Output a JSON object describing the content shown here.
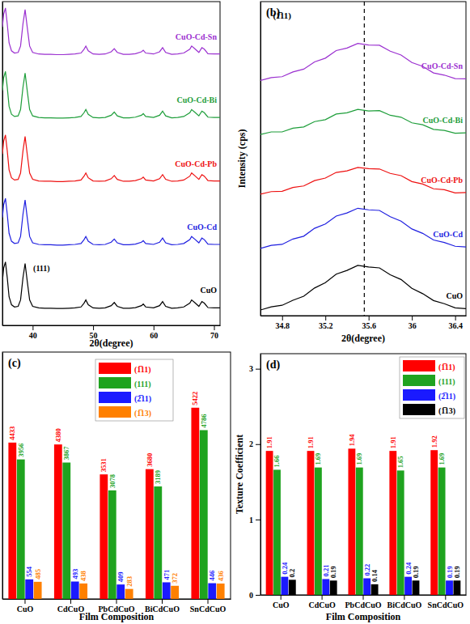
{
  "chart_data": [
    {
      "type": "line",
      "x_label": "2θ(degree)",
      "x": [
        35.0,
        35.2,
        35.5,
        35.8,
        36.1,
        36.5,
        37.0,
        37.6,
        38.0,
        38.4,
        38.75,
        39.1,
        39.5,
        40.0,
        41,
        42,
        43,
        44,
        45,
        46,
        47,
        48,
        48.5,
        48.8,
        49.2,
        50,
        51,
        52,
        53,
        53.5,
        54,
        55,
        56,
        57,
        58,
        58.3,
        58.7,
        60,
        61,
        61.5,
        62,
        63,
        64,
        65,
        66,
        66.3,
        66.8,
        67.5,
        68.0,
        68.4,
        69,
        70,
        71
      ],
      "series": [
        {
          "name": "CuO",
          "color": "#000000",
          "values": [
            1.4,
            1.8,
            2.0,
            1.5,
            0.9,
            0.65,
            0.58,
            0.6,
            0.8,
            1.5,
            1.95,
            1.4,
            0.8,
            0.6,
            0.55,
            0.54,
            0.54,
            0.53,
            0.53,
            0.54,
            0.55,
            0.58,
            0.7,
            0.8,
            0.65,
            0.55,
            0.54,
            0.55,
            0.62,
            0.72,
            0.6,
            0.54,
            0.54,
            0.56,
            0.62,
            0.67,
            0.58,
            0.55,
            0.62,
            0.75,
            0.6,
            0.54,
            0.55,
            0.58,
            0.7,
            0.8,
            0.72,
            0.6,
            0.75,
            0.7,
            0.56,
            0.55,
            0.55
          ]
        },
        {
          "name": "CuO-Cd",
          "color": "#1f1fe0",
          "values": [
            3.4,
            3.8,
            4.0,
            3.5,
            2.9,
            2.65,
            2.58,
            2.6,
            2.8,
            3.5,
            3.95,
            3.4,
            2.8,
            2.6,
            2.55,
            2.54,
            2.54,
            2.53,
            2.53,
            2.54,
            2.55,
            2.58,
            2.7,
            2.8,
            2.65,
            2.55,
            2.54,
            2.55,
            2.62,
            2.72,
            2.6,
            2.54,
            2.54,
            2.56,
            2.62,
            2.67,
            2.58,
            2.55,
            2.62,
            2.75,
            2.6,
            2.54,
            2.55,
            2.58,
            2.7,
            2.8,
            2.72,
            2.6,
            2.75,
            2.7,
            2.56,
            2.55,
            2.55
          ]
        },
        {
          "name": "CuO-Cd-Pb",
          "color": "#ee1111",
          "values": [
            5.4,
            5.8,
            6.0,
            5.5,
            4.9,
            4.65,
            4.58,
            4.6,
            4.8,
            5.5,
            5.95,
            5.4,
            4.8,
            4.6,
            4.55,
            4.54,
            4.54,
            4.53,
            4.53,
            4.54,
            4.55,
            4.58,
            4.7,
            4.8,
            4.65,
            4.55,
            4.54,
            4.55,
            4.62,
            4.72,
            4.6,
            4.54,
            4.54,
            4.56,
            4.62,
            4.67,
            4.58,
            4.55,
            4.62,
            4.75,
            4.6,
            4.54,
            4.55,
            4.58,
            4.7,
            4.8,
            4.72,
            4.6,
            4.75,
            4.7,
            4.56,
            4.55,
            4.55
          ]
        },
        {
          "name": "CuO-Cd-Bi",
          "color": "#1e9e3a",
          "values": [
            7.4,
            7.8,
            8.0,
            7.5,
            6.9,
            6.65,
            6.58,
            6.6,
            6.8,
            7.5,
            7.95,
            7.4,
            6.8,
            6.6,
            6.55,
            6.54,
            6.54,
            6.53,
            6.53,
            6.54,
            6.55,
            6.58,
            6.7,
            6.8,
            6.65,
            6.55,
            6.54,
            6.55,
            6.62,
            6.72,
            6.6,
            6.54,
            6.54,
            6.56,
            6.62,
            6.67,
            6.58,
            6.55,
            6.62,
            6.75,
            6.6,
            6.54,
            6.55,
            6.58,
            6.7,
            6.8,
            6.72,
            6.6,
            6.75,
            6.7,
            6.56,
            6.55,
            6.55
          ]
        },
        {
          "name": "CuO-Cd-Sn",
          "color": "#9b30d0",
          "values": [
            9.4,
            9.8,
            10.0,
            9.5,
            8.9,
            8.65,
            8.58,
            8.6,
            8.8,
            9.5,
            9.95,
            9.4,
            8.8,
            8.6,
            8.55,
            8.54,
            8.54,
            8.53,
            8.53,
            8.54,
            8.55,
            8.58,
            8.7,
            8.8,
            8.65,
            8.55,
            8.54,
            8.55,
            8.62,
            8.72,
            8.6,
            8.54,
            8.54,
            8.56,
            8.62,
            8.67,
            8.58,
            8.55,
            8.62,
            8.75,
            8.6,
            8.54,
            8.55,
            8.58,
            8.7,
            8.8,
            8.72,
            8.6,
            8.75,
            8.7,
            8.56,
            8.55,
            8.55
          ]
        }
      ],
      "annotations": [
        {
          "text": "(111)",
          "x": 40.1,
          "y": 1.7
        }
      ],
      "xlim": [
        35,
        71
      ],
      "xticks": [
        40,
        50,
        60,
        70
      ],
      "ylim": [
        0,
        10.2
      ],
      "tick_labels": "x"
    },
    {
      "type": "line",
      "title": "(b)",
      "x_label": "2θ(degree)",
      "y_label": "Intensity (cps)",
      "x": [
        34.6,
        34.7,
        34.8,
        34.9,
        35.0,
        35.1,
        35.2,
        35.3,
        35.4,
        35.5,
        35.6,
        35.7,
        35.8,
        35.9,
        36.0,
        36.1,
        36.2,
        36.3,
        36.4,
        36.5
      ],
      "series": [
        {
          "name": "CuO",
          "color": "#000000",
          "values": [
            0.18,
            0.28,
            0.33,
            0.49,
            0.62,
            0.88,
            1.05,
            1.32,
            1.44,
            1.6,
            1.55,
            1.52,
            1.3,
            1.15,
            0.87,
            0.7,
            0.48,
            0.38,
            0.25,
            0.22
          ]
        },
        {
          "name": "CuO-Cd",
          "color": "#1f1fe0",
          "values": [
            2.14,
            2.24,
            2.27,
            2.44,
            2.53,
            2.78,
            2.92,
            3.17,
            3.27,
            3.42,
            3.37,
            3.35,
            3.15,
            3.01,
            2.76,
            2.62,
            2.41,
            2.33,
            2.21,
            2.19
          ]
        },
        {
          "name": "CuO-Cd-Pb",
          "color": "#ee1111",
          "values": [
            3.87,
            3.95,
            3.96,
            4.08,
            4.13,
            4.3,
            4.38,
            4.56,
            4.61,
            4.72,
            4.68,
            4.67,
            4.53,
            4.46,
            4.27,
            4.19,
            4.04,
            4.01,
            3.91,
            3.92
          ]
        },
        {
          "name": "CuO-Cd-Bi",
          "color": "#1e9e3a",
          "values": [
            5.77,
            5.85,
            5.85,
            5.97,
            6.01,
            6.18,
            6.24,
            6.42,
            6.46,
            6.57,
            6.52,
            6.53,
            6.38,
            6.32,
            6.14,
            6.08,
            5.93,
            5.9,
            5.81,
            5.82
          ]
        },
        {
          "name": "CuO-Cd-Sn",
          "color": "#9b30d0",
          "values": [
            7.49,
            7.58,
            7.61,
            7.76,
            7.85,
            8.08,
            8.2,
            8.44,
            8.52,
            8.67,
            8.62,
            8.61,
            8.42,
            8.3,
            8.06,
            7.94,
            7.73,
            7.66,
            7.55,
            7.54
          ]
        }
      ],
      "reference_x": 35.56,
      "annotations": [
        {
          "text": "(1̅11)",
          "x": 34.8,
          "y": 9.45
        }
      ],
      "xlim": [
        34.6,
        36.5
      ],
      "xticks": [
        34.8,
        35.2,
        35.6,
        36,
        36.4
      ],
      "ylim": [
        0,
        10
      ],
      "tick_labels": "x"
    },
    {
      "type": "bar",
      "title": "(c)",
      "x_label": "Film Composition",
      "categories": [
        "CuO",
        "CdCuO",
        "PbCdCuO",
        "BiCdCuO",
        "SnCdCuO"
      ],
      "series": [
        {
          "name": "(1̅11)",
          "color": "#ff0000",
          "values": [
            4433,
            4380,
            3531,
            3680,
            5422
          ]
        },
        {
          "name": "(111)",
          "color": "#1fa31f",
          "values": [
            3956,
            3867,
            3078,
            3189,
            4786
          ]
        },
        {
          "name": "(2̅11)",
          "color": "#1a1aff",
          "values": [
            554,
            493,
            409,
            471,
            446
          ]
        },
        {
          "name": "(1̅13)",
          "color": "#ff8000",
          "values": [
            485,
            438,
            283,
            372,
            436
          ]
        }
      ],
      "ylim": [
        0,
        7000
      ],
      "tick_labels": "x",
      "data_labels": true,
      "legend": "top-right"
    },
    {
      "type": "bar",
      "title": "(d)",
      "x_label": "Film Composition",
      "y_label": "Texture Coefficient",
      "categories": [
        "CuO",
        "CdCuO",
        "PbCdCuO",
        "BiCdCuO",
        "SnCdCuO"
      ],
      "series": [
        {
          "name": "(1̅11)",
          "color": "#ff0000",
          "values": [
            1.91,
            1.91,
            1.94,
            1.91,
            1.92
          ]
        },
        {
          "name": "(111)",
          "color": "#1fa31f",
          "values": [
            1.66,
            1.69,
            1.69,
            1.65,
            1.69
          ]
        },
        {
          "name": "(2̅11)",
          "color": "#1a1aff",
          "values": [
            0.24,
            0.21,
            0.22,
            0.24,
            0.19
          ]
        },
        {
          "name": "(1̅13)",
          "color": "#000000",
          "values": [
            0.2,
            0.19,
            0.14,
            0.19,
            0.19
          ]
        }
      ],
      "ylim": [
        0,
        3.2
      ],
      "yticks": [
        0,
        1,
        2,
        3
      ],
      "data_labels": true,
      "legend": "top-right"
    }
  ]
}
